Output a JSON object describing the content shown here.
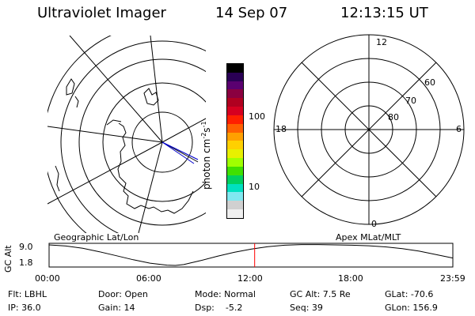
{
  "header": {
    "instrument": "Ultraviolet Imager",
    "date": "14 Sep 07",
    "time": "12:13:15 UT"
  },
  "colorbar": {
    "label": "photon cm",
    "label_sup1": "-2",
    "label_mid": "s",
    "label_sup2": "-1",
    "ticks": [
      "100",
      "10"
    ],
    "colors": [
      "#000000",
      "#2a0055",
      "#5a0070",
      "#8a0040",
      "#b00020",
      "#d60020",
      "#ff2000",
      "#ff6000",
      "#ffa000",
      "#ffd000",
      "#e8f000",
      "#a0ff00",
      "#40e000",
      "#00d060",
      "#00e0c0",
      "#80e8f0",
      "#d0d0d0",
      "#f0f0f0"
    ]
  },
  "left_map": {
    "caption": "Geographic Lat/Lon"
  },
  "right_map": {
    "caption": "Apex MLat/MLT",
    "mlt_labels": [
      "12",
      "18",
      "6",
      "0"
    ],
    "mlat_labels": [
      "60",
      "70",
      "80"
    ]
  },
  "chart_data": {
    "type": "line",
    "title": "",
    "ylabel": "GC Alt",
    "yticks": [
      "9.0",
      "1.8"
    ],
    "ylim": [
      1.8,
      9.0
    ],
    "xlim": [
      0,
      24
    ],
    "xticks": [
      "00:00",
      "06:00",
      "12:00",
      "18:00",
      "23:59"
    ],
    "series": [
      {
        "x": [
          0,
          1,
          2,
          3,
          4,
          5,
          6,
          7,
          7.5,
          8,
          9,
          10,
          11,
          12,
          13,
          14,
          15,
          16,
          17,
          18,
          19,
          20,
          21,
          22,
          23,
          24
        ],
        "y": [
          9.0,
          8.6,
          7.8,
          6.6,
          5.2,
          3.8,
          2.6,
          1.9,
          1.8,
          2.1,
          3.5,
          5.0,
          6.4,
          7.5,
          8.4,
          8.9,
          9.1,
          9.1,
          9.0,
          8.9,
          8.7,
          8.3,
          7.7,
          6.8,
          5.6,
          4.4
        ]
      }
    ],
    "current_time": 12.22,
    "marker_color": "#ff0000"
  },
  "info": {
    "filter": "Flt: LBHL",
    "ip": "IP: 36.0",
    "door": "Door: Open",
    "gain": "Gain: 14",
    "mode": "Mode: Normal",
    "dsp": "Dsp:    -5.2",
    "gc_alt": "GC Alt: 7.5 Re",
    "seq": "Seq: 39",
    "glat": "GLat: -70.6",
    "glon": "GLon: 156.9"
  }
}
